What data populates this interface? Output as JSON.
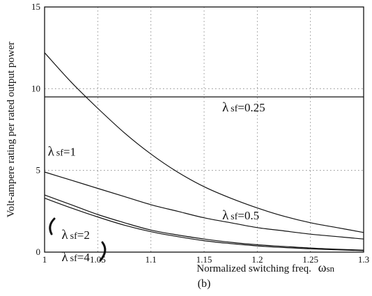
{
  "chart_data": {
    "type": "line",
    "title": "",
    "xlabel": "Normalized switching freq.",
    "xlabel_symbol": "ω",
    "xlabel_sub": "sn",
    "ylabel": "Volt-ampere rating per rated output power",
    "xlim": [
      1,
      1.3
    ],
    "ylim": [
      0,
      15
    ],
    "x_ticks": [
      "1",
      "1.05",
      "1.1",
      "1.15",
      "1.2",
      "1.25",
      "1.3"
    ],
    "y_ticks": [
      "0",
      "5",
      "10",
      "15"
    ],
    "grid": true,
    "caption": "(b)",
    "x": [
      1.0,
      1.025,
      1.05,
      1.075,
      1.1,
      1.125,
      1.15,
      1.175,
      1.2,
      1.225,
      1.25,
      1.275,
      1.3
    ],
    "series": [
      {
        "name": "λsf=0.25",
        "values": [
          9.5,
          9.5,
          9.5,
          9.5,
          9.5,
          9.5,
          9.5,
          9.5,
          9.5,
          9.5,
          9.5,
          9.5,
          9.5
        ]
      },
      {
        "name": "λsf=0.5",
        "values": [
          12.2,
          10.4,
          8.8,
          7.3,
          6.0,
          4.9,
          4.0,
          3.3,
          2.7,
          2.2,
          1.8,
          1.5,
          1.2
        ]
      },
      {
        "name": "λsf=1",
        "values": [
          4.9,
          4.4,
          3.9,
          3.4,
          2.9,
          2.5,
          2.1,
          1.8,
          1.5,
          1.3,
          1.1,
          0.95,
          0.8
        ]
      },
      {
        "name": "λsf=2",
        "values": [
          3.5,
          2.9,
          2.3,
          1.8,
          1.35,
          1.05,
          0.8,
          0.6,
          0.45,
          0.35,
          0.25,
          0.18,
          0.12
        ]
      },
      {
        "name": "λsf=4",
        "values": [
          3.3,
          2.7,
          2.15,
          1.65,
          1.25,
          0.95,
          0.7,
          0.52,
          0.38,
          0.28,
          0.2,
          0.14,
          0.09
        ]
      }
    ],
    "annotations": [
      {
        "symbol": "λ",
        "sub": "sf",
        "text": "=0.25",
        "x": 1.167,
        "y": 8.6
      },
      {
        "symbol": "λ",
        "sub": "sf",
        "text": "=0.5",
        "x": 1.167,
        "y": 2.0
      },
      {
        "symbol": "λ",
        "sub": "sf",
        "text": "=1",
        "x": 1.003,
        "y": 5.9
      },
      {
        "symbol": "λ",
        "sub": "sf",
        "text": "=2",
        "x": 1.016,
        "y": 0.8
      },
      {
        "symbol": "λ",
        "sub": "sf",
        "text": "=4",
        "x": 1.016,
        "y": -0.55
      }
    ]
  }
}
